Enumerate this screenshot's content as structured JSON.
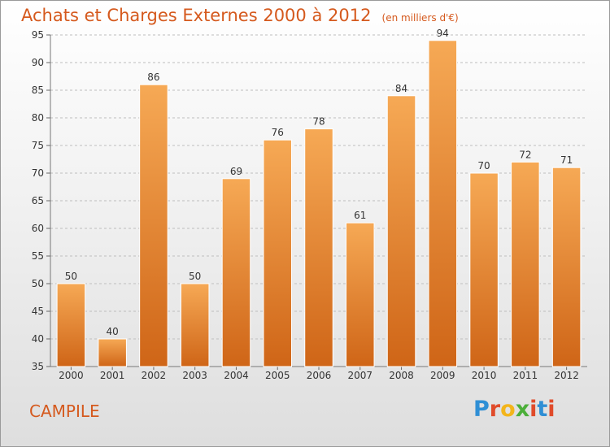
{
  "header": {
    "title": "Achats et Charges Externes 2000 à 2012",
    "subtitle": "(en milliers d'€)"
  },
  "footer": {
    "location": "CAMPILE",
    "logo_text": "Proxiti",
    "logo_colors": [
      "#2f8fd5",
      "#e04b2a",
      "#f3b51b",
      "#4caf3a",
      "#e04b2a",
      "#2f8fd5",
      "#e04b2a"
    ]
  },
  "chart_data": {
    "type": "bar",
    "categories": [
      "2000",
      "2001",
      "2002",
      "2003",
      "2004",
      "2005",
      "2006",
      "2007",
      "2008",
      "2009",
      "2010",
      "2011",
      "2012"
    ],
    "values": [
      50,
      40,
      86,
      50,
      69,
      76,
      78,
      61,
      84,
      94,
      70,
      72,
      71
    ],
    "title": "Achats et Charges Externes 2000 à 2012",
    "subtitle": "(en milliers d'€)",
    "xlabel": "",
    "ylabel": "",
    "ylim": [
      35,
      95
    ],
    "yticks": [
      35,
      40,
      45,
      50,
      55,
      60,
      65,
      70,
      75,
      80,
      85,
      90,
      95
    ],
    "grid": true,
    "bar_color": "#f08a30",
    "bar_color_light": "#f6a955",
    "bar_color_dark": "#cf6517",
    "grid_color": "#bdbdbd"
  }
}
